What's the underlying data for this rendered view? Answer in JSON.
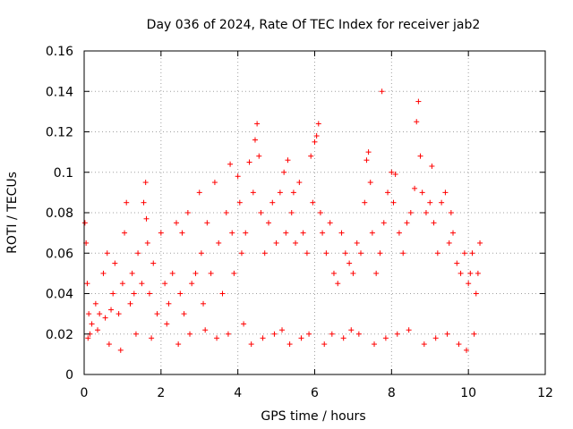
{
  "chart_data": {
    "type": "scatter",
    "title": "Day 036 of 2024, Rate Of TEC Index for receiver jab2",
    "xlabel": "GPS time / hours",
    "ylabel": "ROTI / TECUs",
    "xlim": [
      0,
      12
    ],
    "ylim": [
      0,
      0.16
    ],
    "xticks": [
      0,
      2,
      4,
      6,
      8,
      10,
      12
    ],
    "xtick_labels": [
      "0",
      "2",
      "4",
      "6",
      "8",
      "10",
      "12"
    ],
    "yticks": [
      0,
      0.02,
      0.04,
      0.06,
      0.08,
      0.1,
      0.12,
      0.14,
      0.16
    ],
    "ytick_labels": [
      "0",
      "0.02",
      "0.04",
      "0.06",
      "0.08",
      "0.1",
      "0.12",
      "0.14",
      "0.16"
    ],
    "grid": true,
    "marker": "+",
    "series_color": "#ff0000",
    "series": [
      {
        "name": "ROTI",
        "x": [
          0.02,
          0.05,
          0.08,
          0.12,
          0.15,
          0.2,
          0.3,
          0.4,
          0.5,
          0.55,
          0.6,
          0.7,
          0.75,
          0.8,
          0.9,
          1.0,
          1.05,
          1.1,
          1.2,
          1.25,
          1.3,
          1.4,
          1.5,
          1.55,
          1.6,
          1.62,
          1.65,
          1.7,
          1.8,
          1.9,
          2.0,
          2.1,
          2.2,
          2.3,
          2.4,
          2.5,
          2.55,
          2.6,
          2.7,
          2.8,
          2.9,
          3.0,
          3.05,
          3.1,
          3.2,
          3.3,
          3.4,
          3.5,
          3.6,
          3.7,
          3.8,
          3.85,
          3.9,
          4.0,
          4.05,
          4.1,
          4.2,
          4.3,
          4.4,
          4.45,
          4.5,
          4.55,
          4.6,
          4.7,
          4.8,
          4.9,
          5.0,
          5.1,
          5.2,
          5.25,
          5.3,
          5.4,
          5.45,
          5.5,
          5.6,
          5.7,
          5.8,
          5.9,
          5.95,
          6.0,
          6.05,
          6.1,
          6.15,
          6.2,
          6.3,
          6.4,
          6.5,
          6.6,
          6.7,
          6.8,
          6.9,
          7.0,
          7.1,
          7.2,
          7.3,
          7.35,
          7.4,
          7.45,
          7.5,
          7.6,
          7.7,
          7.75,
          7.8,
          7.9,
          8.0,
          8.05,
          8.1,
          8.2,
          8.3,
          8.4,
          8.5,
          8.6,
          8.65,
          8.7,
          8.75,
          8.8,
          8.9,
          9.0,
          9.05,
          9.1,
          9.2,
          9.3,
          9.4,
          9.5,
          9.55,
          9.6,
          9.7,
          9.8,
          9.9,
          10.0,
          10.05,
          10.1,
          10.2,
          10.25,
          10.3,
          0.1,
          0.35,
          0.65,
          0.95,
          1.35,
          1.75,
          2.15,
          2.45,
          2.75,
          3.15,
          3.45,
          3.75,
          4.15,
          4.35,
          4.65,
          4.95,
          5.15,
          5.35,
          5.65,
          5.85,
          6.25,
          6.45,
          6.75,
          6.95,
          7.15,
          7.55,
          7.85,
          8.15,
          8.45,
          8.85,
          9.15,
          9.45,
          9.75,
          9.95,
          10.15
        ],
        "y": [
          0.075,
          0.065,
          0.045,
          0.03,
          0.02,
          0.025,
          0.035,
          0.03,
          0.05,
          0.028,
          0.06,
          0.032,
          0.04,
          0.055,
          0.03,
          0.045,
          0.07,
          0.085,
          0.035,
          0.05,
          0.04,
          0.06,
          0.045,
          0.085,
          0.095,
          0.077,
          0.065,
          0.04,
          0.055,
          0.03,
          0.07,
          0.045,
          0.035,
          0.05,
          0.075,
          0.04,
          0.07,
          0.03,
          0.08,
          0.045,
          0.05,
          0.09,
          0.06,
          0.035,
          0.075,
          0.05,
          0.095,
          0.065,
          0.04,
          0.08,
          0.104,
          0.07,
          0.05,
          0.098,
          0.085,
          0.06,
          0.07,
          0.105,
          0.09,
          0.116,
          0.124,
          0.108,
          0.08,
          0.06,
          0.075,
          0.085,
          0.065,
          0.09,
          0.1,
          0.07,
          0.106,
          0.08,
          0.09,
          0.065,
          0.095,
          0.07,
          0.06,
          0.108,
          0.085,
          0.115,
          0.118,
          0.124,
          0.08,
          0.07,
          0.06,
          0.075,
          0.05,
          0.045,
          0.07,
          0.06,
          0.055,
          0.05,
          0.065,
          0.06,
          0.085,
          0.106,
          0.11,
          0.095,
          0.07,
          0.05,
          0.06,
          0.14,
          0.075,
          0.09,
          0.1,
          0.085,
          0.099,
          0.07,
          0.06,
          0.075,
          0.08,
          0.092,
          0.125,
          0.135,
          0.108,
          0.09,
          0.08,
          0.085,
          0.103,
          0.075,
          0.06,
          0.085,
          0.09,
          0.065,
          0.08,
          0.07,
          0.055,
          0.05,
          0.06,
          0.045,
          0.05,
          0.06,
          0.04,
          0.05,
          0.065,
          0.018,
          0.022,
          0.015,
          0.012,
          0.02,
          0.018,
          0.025,
          0.015,
          0.02,
          0.022,
          0.018,
          0.02,
          0.025,
          0.015,
          0.018,
          0.02,
          0.022,
          0.015,
          0.018,
          0.02,
          0.015,
          0.02,
          0.018,
          0.022,
          0.02,
          0.015,
          0.018,
          0.02,
          0.022,
          0.015,
          0.018,
          0.02,
          0.015,
          0.012,
          0.02
        ]
      }
    ]
  }
}
